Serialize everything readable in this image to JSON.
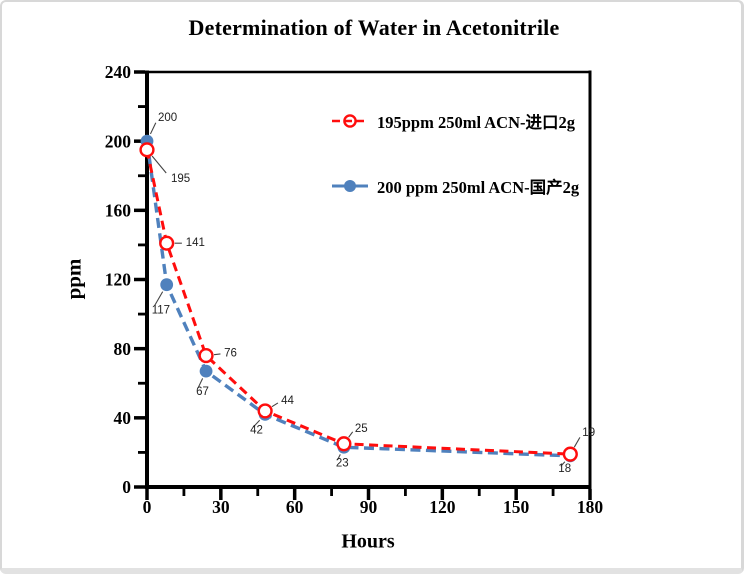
{
  "window": {
    "background": "#ffffff",
    "frame_border_color": "#d8d8d8"
  },
  "colors": {
    "series_red": "#ff0d0d",
    "series_blue": "#4f81bd",
    "axis": "#000000",
    "point_label_text": "#222222",
    "leader_line": "#444444"
  },
  "chart_data": {
    "type": "line",
    "title": "Determination of Water in Acetonitrile",
    "xlabel": "Hours",
    "ylabel": "ppm",
    "xlim": [
      0,
      180
    ],
    "ylim": [
      0,
      240
    ],
    "x_major_step": 30,
    "x_minor_step": 15,
    "y_major_step": 40,
    "y_minor_step": 20,
    "x_tick_labels": [
      "0",
      "30",
      "60",
      "90",
      "120",
      "150",
      "180"
    ],
    "y_tick_labels": [
      "0",
      "40",
      "80",
      "120",
      "160",
      "200",
      "240"
    ],
    "grid": false,
    "legend_position": "inside-upper-right",
    "series": [
      {
        "name": "195ppm  250ml ACN-进口2g",
        "color": "#ff0d0d",
        "line_style": "dashed",
        "marker": "open-circle",
        "x": [
          0,
          8,
          24,
          48,
          80,
          172
        ],
        "y": [
          195,
          141,
          76,
          44,
          25,
          19
        ],
        "point_labels": [
          "195",
          "141",
          "76",
          "44",
          "25",
          "19"
        ]
      },
      {
        "name": "200 ppm 250ml ACN-国产2g",
        "color": "#4f81bd",
        "line_style": "dashed",
        "marker": "filled-circle",
        "x": [
          0,
          8,
          24,
          48,
          80,
          172
        ],
        "y": [
          200,
          117,
          67,
          42,
          23,
          18
        ],
        "point_labels": [
          "200",
          "117",
          "67",
          "42",
          "23",
          "18"
        ]
      }
    ]
  }
}
